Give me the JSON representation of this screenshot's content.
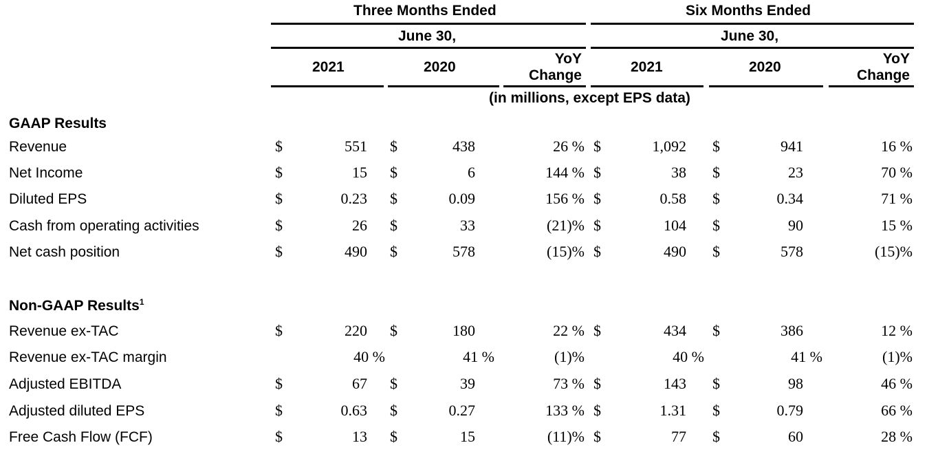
{
  "headers": {
    "three_months": "Three Months Ended",
    "six_months": "Six Months Ended",
    "three_date": "June 30,",
    "six_date": "June 30,",
    "three_2021": "2021",
    "three_2020": "2020",
    "three_yoy_1": "YoY",
    "three_yoy_2": "Change",
    "six_2021": "2021",
    "six_2020": "2020",
    "six_yoy_1": "YoY",
    "six_yoy_2": "Change",
    "units": "(in millions, except EPS data)"
  },
  "sections": {
    "gaap": "GAAP Results",
    "non_gaap": "Non-GAAP Results",
    "non_gaap_sup": "1"
  },
  "currency": "$",
  "rows": [
    {
      "label": "Revenue",
      "d1": "$",
      "v1": "551",
      "d2": "$",
      "v2": "438",
      "c1": "26 %",
      "d3": "$",
      "v3": "1,092",
      "d4": "$",
      "v4": "941",
      "c2": "16 %"
    },
    {
      "label": "Net Income",
      "d1": "$",
      "v1": "15",
      "d2": "$",
      "v2": "6",
      "c1": "144 %",
      "d3": "$",
      "v3": "38",
      "d4": "$",
      "v4": "23",
      "c2": "70 %"
    },
    {
      "label": "Diluted EPS",
      "d1": "$",
      "v1": "0.23",
      "d2": "$",
      "v2": "0.09",
      "c1": "156 %",
      "d3": "$",
      "v3": "0.58",
      "d4": "$",
      "v4": "0.34",
      "c2": "71 %"
    },
    {
      "label": "Cash from operating activities",
      "d1": "$",
      "v1": "26",
      "d2": "$",
      "v2": "33",
      "c1": "(21)%",
      "d3": "$",
      "v3": "104",
      "d4": "$",
      "v4": "90",
      "c2": "15 %"
    },
    {
      "label": "Net cash position",
      "d1": "$",
      "v1": "490",
      "d2": "$",
      "v2": "578",
      "c1": "(15)%",
      "d3": "$",
      "v3": "490",
      "d4": "$",
      "v4": "578",
      "c2": "(15)%"
    },
    {
      "label": "Revenue ex-TAC",
      "d1": "$",
      "v1": "220",
      "d2": "$",
      "v2": "180",
      "c1": "22 %",
      "d3": "$",
      "v3": "434",
      "d4": "$",
      "v4": "386",
      "c2": "12 %"
    },
    {
      "label": "Revenue ex-TAC margin",
      "d1": "",
      "v1": "40 %",
      "d2": "",
      "v2": "41 %",
      "c1": "(1)%",
      "d3": "",
      "v3": "40 %",
      "d4": "",
      "v4": "41 %",
      "c2": "(1)%"
    },
    {
      "label": "Adjusted EBITDA",
      "d1": "$",
      "v1": "67",
      "d2": "$",
      "v2": "39",
      "c1": "73 %",
      "d3": "$",
      "v3": "143",
      "d4": "$",
      "v4": "98",
      "c2": "46 %"
    },
    {
      "label": "Adjusted diluted EPS",
      "d1": "$",
      "v1": "0.63",
      "d2": "$",
      "v2": "0.27",
      "c1": "133 %",
      "d3": "$",
      "v3": "1.31",
      "d4": "$",
      "v4": "0.79",
      "c2": "66 %"
    },
    {
      "label": "Free Cash Flow (FCF)",
      "d1": "$",
      "v1": "13",
      "d2": "$",
      "v2": "15",
      "c1": "(11)%",
      "d3": "$",
      "v3": "77",
      "d4": "$",
      "v4": "60",
      "c2": "28 %"
    }
  ]
}
